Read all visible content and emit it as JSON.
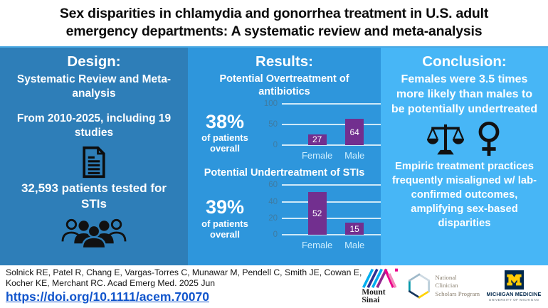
{
  "title": {
    "line1": "Sex disparities in chlamydia and gonorrhea treatment in U.S. adult",
    "line2": "emergency departments: A systematic review and meta-analysis"
  },
  "design": {
    "heading": "Design:",
    "study_type": "Systematic Review and Meta-analysis",
    "scope": "From 2010-2025, including 19 studies",
    "sample": "32,593 patients tested for STIs",
    "icons": [
      "document-icon",
      "people-group-icon"
    ]
  },
  "results": {
    "heading": "Results:",
    "stat1": {
      "value": "38%",
      "label": "of patients overall"
    },
    "stat2": {
      "value": "39%",
      "label": "of patients overall"
    }
  },
  "conclusion": {
    "heading": "Conclusion:",
    "finding": "Females were 3.5 times more likely than males to be potentially undertreated",
    "implication": "Empiric treatment practices frequently misaligned w/ lab-confirmed outcomes, amplifying sex-based disparities",
    "icons": [
      "balance-scale-icon",
      "female-symbol-icon"
    ]
  },
  "footer": {
    "citation_line1": "Solnick RE, Patel R, Chang E, Vargas-Torres C, Munawar M, Pendell C, Smith JE, Cowan E,",
    "citation_line2": "Kocher KE, Merchant RC. Acad Emerg Med. 2025 Jun",
    "doi": "https://doi.org/10.1111/acem.70070",
    "logos": {
      "mount_sinai": {
        "name_line1": "Mount",
        "name_line2": "Sinai"
      },
      "ncsp": {
        "name_line1": "National Clinician",
        "name_line2": "Scholars Program"
      },
      "michigan": {
        "name": "MICHIGAN MEDICINE",
        "sub": "UNIVERSITY OF MICHIGAN",
        "monogram": "M"
      }
    }
  },
  "chart_data": [
    {
      "type": "bar",
      "title": "Potential Overtreatment of antibiotics",
      "categories": [
        "Female",
        "Male"
      ],
      "values": [
        27,
        64
      ],
      "ylim": [
        0,
        100
      ],
      "yticks": [
        0,
        50,
        100
      ],
      "grid": true,
      "legend": false,
      "bar_color": "#722f8f",
      "value_labels_inside_bars": true
    },
    {
      "type": "bar",
      "title": "Potential Undertreatment of STIs",
      "categories": [
        "Female",
        "Male"
      ],
      "values": [
        52,
        15
      ],
      "ylim": [
        0,
        60
      ],
      "yticks": [
        0,
        20,
        40,
        60
      ],
      "grid": true,
      "legend": false,
      "bar_color": "#722f8f",
      "value_labels_inside_bars": true
    }
  ],
  "colors": {
    "design_panel_bg": "#2e7eb8",
    "results_panel_bg": "#2e96dc",
    "conclusion_panel_bg": "#47b6f6",
    "bar": "#722f8f",
    "gridline": "#cfe9f8",
    "doi_link": "#1155cc",
    "michigan_navy": "#00274c",
    "michigan_maize": "#ffcb05",
    "mount_sinai_cyan": "#00aeef",
    "mount_sinai_blue": "#2e3192",
    "mount_sinai_purple": "#92278f",
    "mount_sinai_magenta": "#ec008c"
  }
}
